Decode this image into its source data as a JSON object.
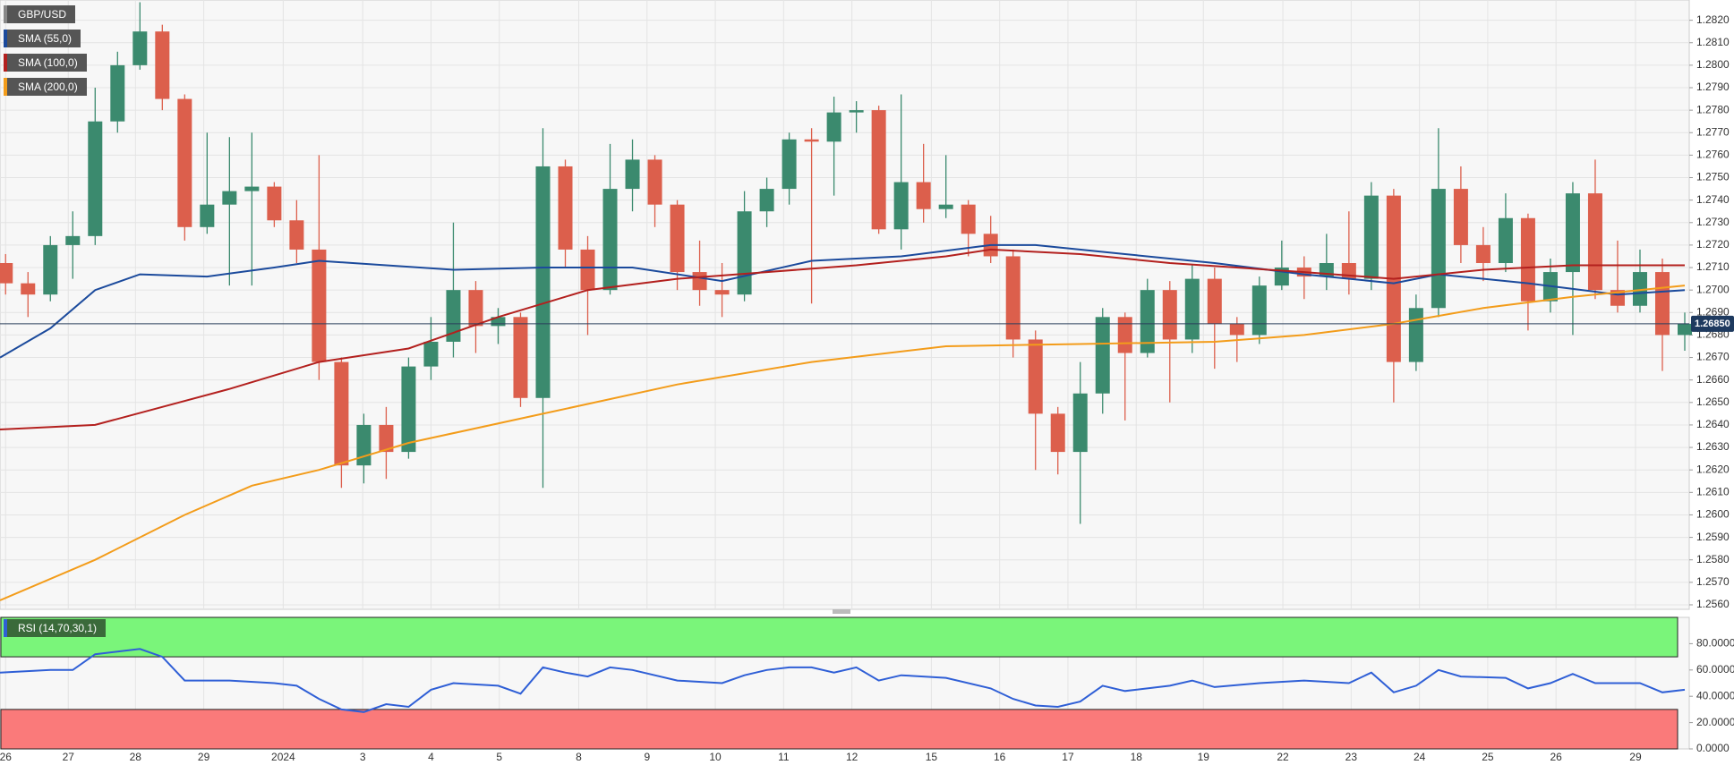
{
  "chart_data": [
    {
      "type": "candlestick",
      "title": "GBP/USD",
      "x": [
        0,
        1,
        2,
        3,
        4,
        5,
        6,
        7,
        8,
        9,
        10,
        11,
        12,
        13,
        14,
        15,
        16,
        17,
        18,
        19,
        20,
        21,
        22,
        23,
        24,
        25,
        26,
        27,
        28,
        29,
        30,
        31,
        32,
        33,
        34,
        35,
        36,
        37,
        38,
        39,
        40,
        41,
        42,
        43,
        44,
        45,
        46,
        47,
        48,
        49,
        50,
        51,
        52,
        53,
        54,
        55,
        56,
        57,
        58,
        59,
        60,
        61,
        62,
        63,
        64,
        65,
        66,
        67,
        68,
        69,
        70,
        71,
        72,
        73,
        74,
        75
      ],
      "open": [
        1.2712,
        1.2703,
        1.2698,
        1.272,
        1.2724,
        1.2775,
        1.28,
        1.2815,
        1.2785,
        1.2728,
        1.2738,
        1.2744,
        1.2746,
        1.2731,
        1.2718,
        1.2668,
        1.2622,
        1.264,
        1.2628,
        1.2666,
        1.2677,
        1.27,
        1.2684,
        1.2688,
        1.2652,
        1.2755,
        1.2718,
        1.27,
        1.2745,
        1.2758,
        1.2738,
        1.2708,
        1.27,
        1.2698,
        1.2735,
        1.2745,
        1.2767,
        1.2766,
        1.2779,
        1.278,
        1.2727,
        1.2748,
        1.2736,
        1.2738,
        1.2725,
        1.2715,
        1.2678,
        1.2645,
        1.2628,
        1.2654,
        1.2688,
        1.2672,
        1.27,
        1.2678,
        1.2705,
        1.2685,
        1.268,
        1.2702,
        1.271,
        1.2706,
        1.2712,
        1.2705,
        1.2742,
        1.2668,
        1.2692,
        1.2745,
        1.272,
        1.2712,
        1.2732,
        1.2695,
        1.2708,
        1.2743,
        1.27,
        1.2693,
        1.2708,
        1.268
      ],
      "high": [
        1.2716,
        1.2708,
        1.2724,
        1.2735,
        1.279,
        1.2806,
        1.2828,
        1.2818,
        1.2787,
        1.277,
        1.2768,
        1.277,
        1.2748,
        1.274,
        1.276,
        1.267,
        1.2645,
        1.2648,
        1.267,
        1.2688,
        1.273,
        1.2704,
        1.2692,
        1.269,
        1.2772,
        1.2758,
        1.2724,
        1.2765,
        1.2767,
        1.276,
        1.274,
        1.2722,
        1.2712,
        1.2744,
        1.275,
        1.277,
        1.2772,
        1.2786,
        1.2784,
        1.2782,
        1.2787,
        1.2765,
        1.276,
        1.274,
        1.2733,
        1.2718,
        1.2682,
        1.2648,
        1.2668,
        1.2692,
        1.269,
        1.2705,
        1.2704,
        1.2711,
        1.271,
        1.2688,
        1.2706,
        1.2722,
        1.2715,
        1.2725,
        1.2735,
        1.2748,
        1.2745,
        1.2698,
        1.2772,
        1.2755,
        1.2728,
        1.2743,
        1.2734,
        1.2714,
        1.2748,
        1.2758,
        1.2722,
        1.2718,
        1.2714,
        1.269
      ],
      "low": [
        1.2698,
        1.2688,
        1.2695,
        1.2705,
        1.272,
        1.277,
        1.2798,
        1.278,
        1.2722,
        1.2725,
        1.2702,
        1.2702,
        1.2728,
        1.2712,
        1.266,
        1.2612,
        1.2614,
        1.2616,
        1.2625,
        1.266,
        1.267,
        1.2672,
        1.2676,
        1.2648,
        1.2612,
        1.271,
        1.268,
        1.2698,
        1.2735,
        1.2728,
        1.27,
        1.2693,
        1.2688,
        1.2695,
        1.2728,
        1.2738,
        1.2694,
        1.2742,
        1.277,
        1.2725,
        1.2718,
        1.273,
        1.2732,
        1.2715,
        1.2712,
        1.267,
        1.262,
        1.2618,
        1.2596,
        1.2645,
        1.2642,
        1.267,
        1.265,
        1.2672,
        1.2665,
        1.2668,
        1.2676,
        1.27,
        1.2696,
        1.27,
        1.2698,
        1.27,
        1.265,
        1.2664,
        1.2688,
        1.2712,
        1.2704,
        1.2708,
        1.2682,
        1.269,
        1.268,
        1.2696,
        1.269,
        1.269,
        1.2664,
        1.2673
      ],
      "close": [
        1.2703,
        1.2698,
        1.272,
        1.2724,
        1.2775,
        1.28,
        1.2815,
        1.2785,
        1.2728,
        1.2738,
        1.2744,
        1.2746,
        1.2731,
        1.2718,
        1.2668,
        1.2622,
        1.264,
        1.2628,
        1.2666,
        1.2677,
        1.27,
        1.2684,
        1.2688,
        1.2652,
        1.2755,
        1.2718,
        1.27,
        1.2745,
        1.2758,
        1.2738,
        1.2708,
        1.27,
        1.2698,
        1.2735,
        1.2745,
        1.2767,
        1.2766,
        1.2779,
        1.278,
        1.2727,
        1.2748,
        1.2736,
        1.2738,
        1.2725,
        1.2715,
        1.2678,
        1.2645,
        1.2628,
        1.2654,
        1.2688,
        1.2672,
        1.27,
        1.2678,
        1.2705,
        1.2685,
        1.268,
        1.2702,
        1.271,
        1.2706,
        1.2712,
        1.2705,
        1.2742,
        1.2668,
        1.2692,
        1.2745,
        1.272,
        1.2712,
        1.2732,
        1.2695,
        1.2708,
        1.2743,
        1.27,
        1.2693,
        1.2708,
        1.268,
        1.2685
      ],
      "up_color": "#3b8a6e",
      "down_color": "#dc5f4c",
      "series": [
        {
          "name": "SMA (55,0)",
          "color": "#1b4a9c",
          "x": [
            -0.25,
            2,
            4,
            6,
            9,
            12,
            14,
            20,
            24,
            28,
            32,
            36,
            40,
            44,
            46,
            50,
            54,
            58,
            62,
            64,
            68,
            72,
            75
          ],
          "values": [
            1.267,
            1.2683,
            1.27,
            1.2707,
            1.2706,
            1.271,
            1.2713,
            1.2709,
            1.271,
            1.271,
            1.2704,
            1.2713,
            1.2715,
            1.272,
            1.272,
            1.2716,
            1.2712,
            1.2707,
            1.2703,
            1.2707,
            1.2703,
            1.2698,
            1.27
          ]
        },
        {
          "name": "SMA (100,0)",
          "color": "#b3201e",
          "x": [
            -0.25,
            4,
            7,
            10,
            14,
            18,
            22,
            26,
            30,
            34,
            38,
            42,
            44,
            48,
            52,
            58,
            62,
            66,
            70,
            75
          ],
          "values": [
            1.2638,
            1.264,
            1.2648,
            1.2656,
            1.2668,
            1.2674,
            1.2688,
            1.27,
            1.2705,
            1.2708,
            1.2711,
            1.2715,
            1.2718,
            1.2716,
            1.2712,
            1.2708,
            1.2705,
            1.2709,
            1.2711,
            1.2711
          ]
        },
        {
          "name": "SMA (200,0)",
          "color": "#f39c1a",
          "x": [
            -0.25,
            4,
            8,
            11,
            14,
            18,
            24,
            30,
            36,
            42,
            48,
            54,
            58,
            62,
            66,
            70,
            75
          ],
          "values": [
            1.2562,
            1.258,
            1.26,
            1.2613,
            1.262,
            1.2632,
            1.2645,
            1.2658,
            1.2668,
            1.2675,
            1.2676,
            1.2677,
            1.268,
            1.2685,
            1.2692,
            1.2697,
            1.2702
          ]
        }
      ],
      "last_price": {
        "value": 1.2685,
        "label": "1.26850"
      },
      "xlim": [
        -0.25,
        75.2
      ],
      "ylim": [
        1.2558,
        1.2829
      ],
      "yticks": [
        {
          "value": 1.256,
          "label": "1.2560"
        },
        {
          "value": 1.257,
          "label": "1.2570"
        },
        {
          "value": 1.258,
          "label": "1.2580"
        },
        {
          "value": 1.259,
          "label": "1.2590"
        },
        {
          "value": 1.26,
          "label": "1.2600"
        },
        {
          "value": 1.261,
          "label": "1.2610"
        },
        {
          "value": 1.262,
          "label": "1.2620"
        },
        {
          "value": 1.263,
          "label": "1.2630"
        },
        {
          "value": 1.264,
          "label": "1.2640"
        },
        {
          "value": 1.265,
          "label": "1.2650"
        },
        {
          "value": 1.266,
          "label": "1.2660"
        },
        {
          "value": 1.267,
          "label": "1.2670"
        },
        {
          "value": 1.268,
          "label": "1.2680"
        },
        {
          "value": 1.269,
          "label": "1.2690"
        },
        {
          "value": 1.27,
          "label": "1.2700"
        },
        {
          "value": 1.271,
          "label": "1.2710"
        },
        {
          "value": 1.272,
          "label": "1.2720"
        },
        {
          "value": 1.273,
          "label": "1.2730"
        },
        {
          "value": 1.274,
          "label": "1.2740"
        },
        {
          "value": 1.275,
          "label": "1.2750"
        },
        {
          "value": 1.276,
          "label": "1.2760"
        },
        {
          "value": 1.277,
          "label": "1.2770"
        },
        {
          "value": 1.278,
          "label": "1.2780"
        },
        {
          "value": 1.279,
          "label": "1.2790"
        },
        {
          "value": 1.28,
          "label": "1.2800"
        },
        {
          "value": 1.281,
          "label": "1.2810"
        },
        {
          "value": 1.282,
          "label": "1.2820"
        }
      ],
      "grid": true
    },
    {
      "type": "line",
      "series": [
        {
          "name": "RSI (14,70,30,1)",
          "color": "#2f5fd6",
          "x": [
            -0.25,
            2,
            3,
            4,
            6,
            7,
            8,
            10,
            12,
            13,
            14,
            15,
            16,
            17,
            18,
            19,
            20,
            22,
            23,
            24,
            25,
            26,
            27,
            28,
            30,
            32,
            33,
            34,
            35,
            36,
            37,
            38,
            39,
            40,
            42,
            44,
            45,
            46,
            47,
            48,
            49,
            50,
            52,
            53,
            54,
            56,
            58,
            60,
            61,
            62,
            63,
            64,
            65,
            67,
            68,
            69,
            70,
            71,
            73,
            74,
            75
          ],
          "values": [
            58,
            60,
            60,
            72,
            76,
            70,
            52,
            52,
            50,
            48,
            38,
            30,
            28,
            34,
            32,
            45,
            50,
            48,
            42,
            62,
            58,
            55,
            62,
            60,
            52,
            50,
            56,
            60,
            62,
            62,
            58,
            62,
            52,
            56,
            54,
            46,
            38,
            33,
            32,
            36,
            48,
            44,
            48,
            52,
            47,
            50,
            52,
            50,
            58,
            43,
            48,
            60,
            55,
            54,
            46,
            50,
            57,
            50,
            50,
            43,
            45
          ]
        }
      ],
      "bands": [
        {
          "from": 70,
          "to": 100,
          "color": "#7af57a"
        },
        {
          "from": 0,
          "to": 30,
          "color": "#fa7a7a"
        }
      ],
      "xlim": [
        -0.25,
        75.2
      ],
      "ylim": [
        0,
        100
      ],
      "yticks": [
        {
          "value": 0,
          "label": "0.0000"
        },
        {
          "value": 20,
          "label": "20.0000"
        },
        {
          "value": 40,
          "label": "40.0000"
        },
        {
          "value": 60,
          "label": "60.0000"
        },
        {
          "value": 80,
          "label": "80.0000"
        }
      ],
      "xticks": [
        {
          "value": 0,
          "label": "26"
        },
        {
          "value": 2.8,
          "label": "27"
        },
        {
          "value": 5.8,
          "label": "28"
        },
        {
          "value": 8.85,
          "label": "29"
        },
        {
          "value": 12.4,
          "label": "2024"
        },
        {
          "value": 15.95,
          "label": "3"
        },
        {
          "value": 19,
          "label": "4"
        },
        {
          "value": 22.05,
          "label": "5"
        },
        {
          "value": 25.6,
          "label": "8"
        },
        {
          "value": 28.65,
          "label": "9"
        },
        {
          "value": 31.7,
          "label": "10"
        },
        {
          "value": 34.75,
          "label": "11"
        },
        {
          "value": 37.8,
          "label": "12"
        },
        {
          "value": 41.35,
          "label": "15"
        },
        {
          "value": 44.4,
          "label": "16"
        },
        {
          "value": 47.45,
          "label": "17"
        },
        {
          "value": 50.5,
          "label": "18"
        },
        {
          "value": 53.5,
          "label": "19"
        },
        {
          "value": 57.05,
          "label": "22"
        },
        {
          "value": 60.1,
          "label": "23"
        },
        {
          "value": 63.15,
          "label": "24"
        },
        {
          "value": 66.2,
          "label": "25"
        },
        {
          "value": 69.25,
          "label": "26"
        },
        {
          "value": 72.8,
          "label": "29"
        }
      ]
    }
  ]
}
